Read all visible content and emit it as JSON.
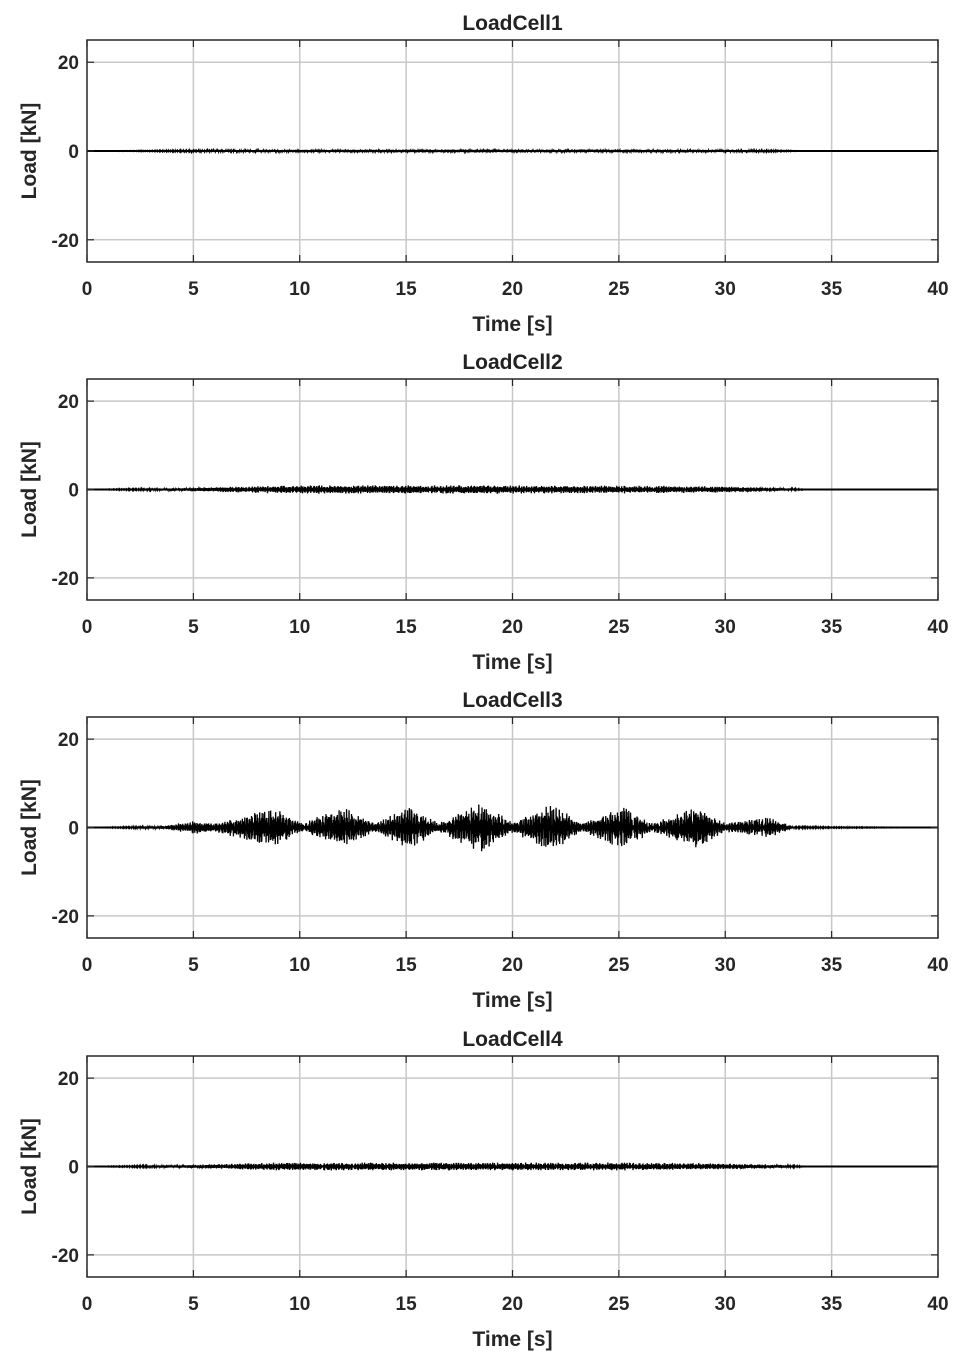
{
  "chart_data": [
    {
      "type": "line",
      "title": "LoadCell1",
      "xlabel": "Time [s]",
      "ylabel": "Load [kN]",
      "xlim": [
        0,
        40
      ],
      "ylim": [
        -25,
        25
      ],
      "xticks": [
        0,
        5,
        10,
        15,
        20,
        25,
        30,
        35,
        40
      ],
      "yticks": [
        20,
        0,
        -20
      ],
      "xtick_labels": [
        "0",
        "5",
        "10",
        "15",
        "20",
        "25",
        "30",
        "35",
        "40"
      ],
      "ytick_labels": [
        "20",
        "0",
        "-20"
      ],
      "grid": true,
      "series": [
        {
          "x": [
            0,
            5,
            8.8,
            12,
            15.2,
            18.5,
            21.8,
            25.2,
            28.6,
            32,
            34,
            40
          ],
          "envelope": [
            0,
            0.2,
            0.3,
            0.35,
            0.35,
            0.4,
            0.35,
            0.35,
            0.3,
            0.2,
            0,
            0
          ]
        }
      ]
    },
    {
      "type": "line",
      "title": "LoadCell2",
      "xlabel": "Time [s]",
      "ylabel": "Load [kN]",
      "xlim": [
        0,
        40
      ],
      "ylim": [
        -25,
        25
      ],
      "xticks": [
        0,
        5,
        10,
        15,
        20,
        25,
        30,
        35,
        40
      ],
      "yticks": [
        20,
        0,
        -20
      ],
      "xtick_labels": [
        "0",
        "5",
        "10",
        "15",
        "20",
        "25",
        "30",
        "35",
        "40"
      ],
      "ytick_labels": [
        "20",
        "0",
        "-20"
      ],
      "grid": true,
      "series": [
        {
          "x": [
            0,
            5,
            8.8,
            12,
            15.2,
            18.5,
            21.8,
            25.2,
            28.6,
            32,
            34,
            40
          ],
          "envelope": [
            0,
            0.4,
            0.9,
            1.0,
            1.0,
            1.0,
            0.9,
            0.9,
            0.8,
            0.5,
            0,
            0
          ]
        }
      ]
    },
    {
      "type": "line",
      "title": "LoadCell3",
      "xlabel": "Time [s]",
      "ylabel": "Load [kN]",
      "xlim": [
        0,
        40
      ],
      "ylim": [
        -25,
        25
      ],
      "xticks": [
        0,
        5,
        10,
        15,
        20,
        25,
        30,
        35,
        40
      ],
      "yticks": [
        20,
        0,
        -20
      ],
      "xtick_labels": [
        "0",
        "5",
        "10",
        "15",
        "20",
        "25",
        "30",
        "35",
        "40"
      ],
      "ytick_labels": [
        "20",
        "0",
        "-20"
      ],
      "grid": true,
      "series": [
        {
          "x": [
            0,
            3.5,
            5,
            6,
            8.8,
            10.2,
            12,
            13.5,
            15.2,
            16.5,
            18.5,
            20,
            21.8,
            23.3,
            25.2,
            26.6,
            28.6,
            30,
            32,
            33.2,
            40
          ],
          "envelope": [
            0,
            0.3,
            1.5,
            1.0,
            4.5,
            1.0,
            5.0,
            1.0,
            5.0,
            1.0,
            6.0,
            1.2,
            5.5,
            1.0,
            5.0,
            1.0,
            5.0,
            1.0,
            2.5,
            0.2,
            0
          ]
        }
      ]
    },
    {
      "type": "line",
      "title": "LoadCell4",
      "xlabel": "Time [s]",
      "ylabel": "Load [kN]",
      "xlim": [
        0,
        40
      ],
      "ylim": [
        -25,
        25
      ],
      "xticks": [
        0,
        5,
        10,
        15,
        20,
        25,
        30,
        35,
        40
      ],
      "yticks": [
        20,
        0,
        -20
      ],
      "xtick_labels": [
        "0",
        "5",
        "10",
        "15",
        "20",
        "25",
        "30",
        "35",
        "40"
      ],
      "ytick_labels": [
        "20",
        "0",
        "-20"
      ],
      "grid": true,
      "series": [
        {
          "x": [
            0,
            5,
            8.8,
            12,
            15.2,
            18.5,
            21.8,
            25.2,
            28.6,
            32,
            34,
            40
          ],
          "envelope": [
            0,
            0.4,
            0.9,
            0.9,
            0.9,
            0.9,
            0.9,
            0.9,
            0.8,
            0.5,
            0,
            0
          ]
        }
      ]
    }
  ]
}
